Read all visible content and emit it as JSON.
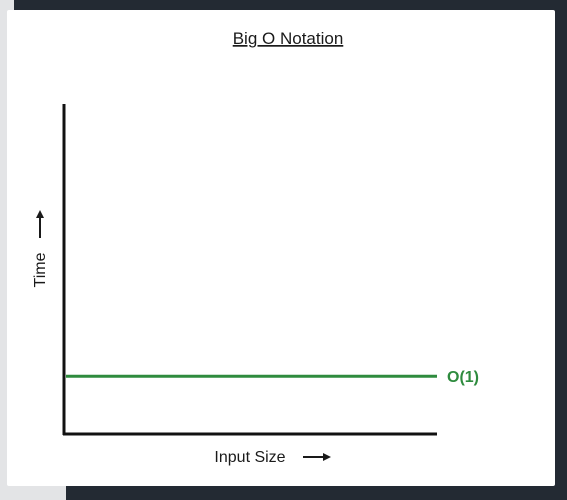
{
  "chart_data": {
    "type": "line",
    "title": "Big O Notation",
    "xlabel": "Input Size",
    "ylabel": "Time",
    "x_tick_labels": [],
    "y_tick_labels": [],
    "grid": false,
    "series": [
      {
        "name": "O(1)",
        "color": "#2e8b3e",
        "x": [
          0,
          1
        ],
        "y": [
          0.17,
          0.17
        ]
      }
    ],
    "xlim": [
      0,
      1
    ],
    "ylim": [
      0,
      1
    ]
  }
}
